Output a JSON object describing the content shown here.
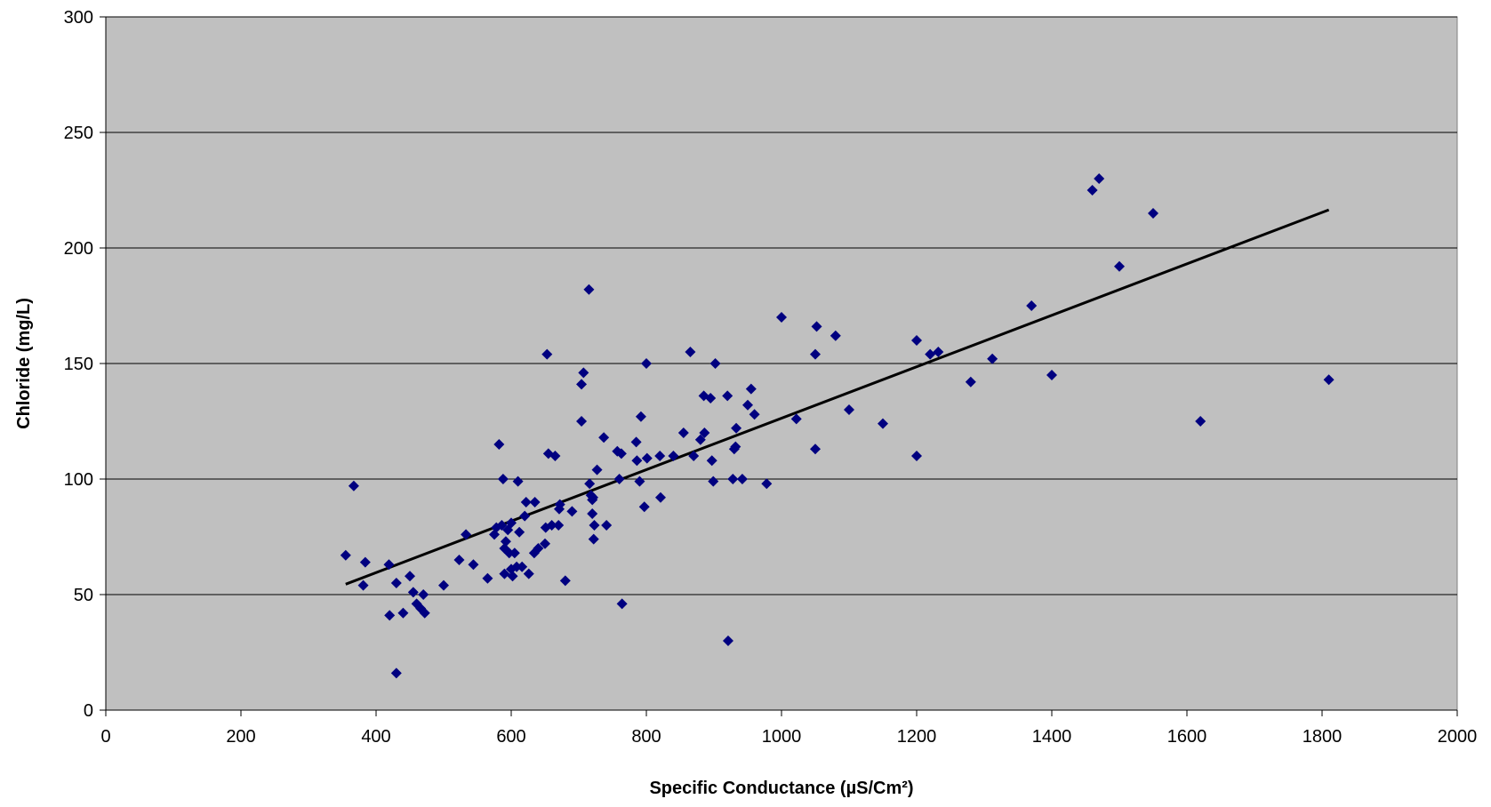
{
  "chart_data": {
    "type": "scatter",
    "xlabel": "Specific Conductance (µS/Cm²)",
    "ylabel": "Chloride (mg/L)",
    "xlim": [
      0,
      2000
    ],
    "ylim": [
      0,
      300
    ],
    "x_ticks": [
      0,
      200,
      400,
      600,
      800,
      1000,
      1200,
      1400,
      1600,
      1800,
      2000
    ],
    "y_ticks": [
      0,
      50,
      100,
      150,
      200,
      250,
      300
    ],
    "x_tick_labels": [
      "0",
      "200",
      "400",
      "600",
      "800",
      "1000",
      "1200",
      "1400",
      "1600",
      "1800",
      "2000"
    ],
    "y_tick_labels": [
      "0",
      "50",
      "100",
      "150",
      "200",
      "250",
      "300"
    ],
    "grid": "horizontal",
    "legend": "none",
    "colors": {
      "plot_background": "#c0c0c0",
      "marker": "#000080",
      "trendline": "#000000",
      "gridline": "#000000"
    },
    "marker_shape": "diamond",
    "series": [
      {
        "points": [
          [
            355,
            67
          ],
          [
            367,
            97
          ],
          [
            381,
            54
          ],
          [
            384,
            64
          ],
          [
            419,
            63
          ],
          [
            420,
            41
          ],
          [
            430,
            16
          ],
          [
            430,
            55
          ],
          [
            440,
            42
          ],
          [
            450,
            58
          ],
          [
            455,
            51
          ],
          [
            460,
            46
          ],
          [
            466,
            44
          ],
          [
            470,
            50
          ],
          [
            472,
            42
          ],
          [
            500,
            54
          ],
          [
            523,
            65
          ],
          [
            533,
            76
          ],
          [
            544,
            63
          ],
          [
            565,
            57
          ],
          [
            575,
            76
          ],
          [
            578,
            79
          ],
          [
            582,
            115
          ],
          [
            586,
            80
          ],
          [
            588,
            100
          ],
          [
            590,
            70
          ],
          [
            590,
            59
          ],
          [
            592,
            73
          ],
          [
            595,
            78
          ],
          [
            597,
            68
          ],
          [
            600,
            61
          ],
          [
            600,
            81
          ],
          [
            602,
            58
          ],
          [
            605,
            68
          ],
          [
            608,
            62
          ],
          [
            610,
            99
          ],
          [
            612,
            77
          ],
          [
            616,
            62
          ],
          [
            620,
            84
          ],
          [
            622,
            90
          ],
          [
            626,
            59
          ],
          [
            634,
            68
          ],
          [
            635,
            90
          ],
          [
            640,
            70
          ],
          [
            650,
            72
          ],
          [
            651,
            79
          ],
          [
            653,
            154
          ],
          [
            655,
            111
          ],
          [
            660,
            80
          ],
          [
            665,
            110
          ],
          [
            670,
            80
          ],
          [
            671,
            87
          ],
          [
            672,
            89
          ],
          [
            680,
            56
          ],
          [
            690,
            86
          ],
          [
            704,
            125
          ],
          [
            704,
            141
          ],
          [
            707,
            146
          ],
          [
            715,
            182
          ],
          [
            716,
            98
          ],
          [
            718,
            93
          ],
          [
            720,
            85
          ],
          [
            720,
            91
          ],
          [
            721,
            92
          ],
          [
            722,
            74
          ],
          [
            723,
            80
          ],
          [
            727,
            104
          ],
          [
            737,
            118
          ],
          [
            741,
            80
          ],
          [
            757,
            112
          ],
          [
            760,
            100
          ],
          [
            763,
            111
          ],
          [
            764,
            46
          ],
          [
            785,
            116
          ],
          [
            786,
            108
          ],
          [
            790,
            99
          ],
          [
            792,
            127
          ],
          [
            797,
            88
          ],
          [
            800,
            150
          ],
          [
            801,
            109
          ],
          [
            820,
            110
          ],
          [
            821,
            92
          ],
          [
            840,
            110
          ],
          [
            855,
            120
          ],
          [
            865,
            155
          ],
          [
            870,
            110
          ],
          [
            880,
            117
          ],
          [
            885,
            136
          ],
          [
            886,
            120
          ],
          [
            895,
            135
          ],
          [
            897,
            108
          ],
          [
            899,
            99
          ],
          [
            902,
            150
          ],
          [
            920,
            136
          ],
          [
            921,
            30
          ],
          [
            928,
            100
          ],
          [
            930,
            113
          ],
          [
            932,
            114
          ],
          [
            933,
            122
          ],
          [
            942,
            100
          ],
          [
            950,
            132
          ],
          [
            955,
            139
          ],
          [
            960,
            128
          ],
          [
            978,
            98
          ],
          [
            1000,
            170
          ],
          [
            1022,
            126
          ],
          [
            1050,
            113
          ],
          [
            1050,
            154
          ],
          [
            1052,
            166
          ],
          [
            1080,
            162
          ],
          [
            1100,
            130
          ],
          [
            1150,
            124
          ],
          [
            1200,
            110
          ],
          [
            1200,
            160
          ],
          [
            1220,
            154
          ],
          [
            1232,
            155
          ],
          [
            1280,
            142
          ],
          [
            1312,
            152
          ],
          [
            1370,
            175
          ],
          [
            1400,
            145
          ],
          [
            1460,
            225
          ],
          [
            1470,
            230
          ],
          [
            1500,
            192
          ],
          [
            1550,
            215
          ],
          [
            1620,
            125
          ],
          [
            1810,
            143
          ]
        ]
      }
    ],
    "trendline": {
      "type": "linear",
      "x_range": [
        355,
        1810
      ],
      "y_range": [
        54.5,
        216.5
      ]
    }
  }
}
